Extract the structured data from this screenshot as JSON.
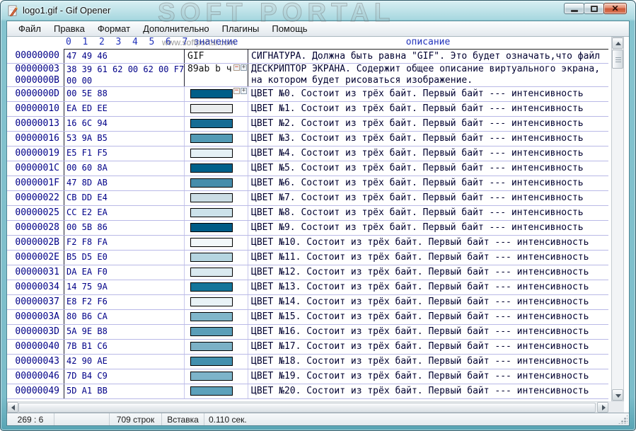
{
  "window": {
    "title": "logo1.gif - Gif Opener"
  },
  "icons": {
    "minimize": "minimize-bar",
    "maximize": "restore-square",
    "close": "✕",
    "collapse": "−",
    "expand": "+"
  },
  "watermark": {
    "line1": "SOFT PORTAL",
    "line2": "www.softportal.com"
  },
  "menu": {
    "items": [
      "Файл",
      "Правка",
      "Формат",
      "Дополнительно",
      "Плагины",
      "Помощь"
    ]
  },
  "table": {
    "byte_headers": [
      "0",
      "1",
      "2",
      "3",
      "4",
      "5",
      "6",
      "7"
    ],
    "value_header": "значение",
    "desc_header": "описание",
    "rows": [
      {
        "type": "boxed",
        "offset": "00000000",
        "hex": "47 49 46",
        "value": "GIF",
        "desc": "СИГНАТУРА. Должна быть равна \"GIF\". Это будет означать,что файл"
      },
      {
        "type": "boxed",
        "offset": "00000003\n0000000B",
        "hex": "38 39 61 62 00 62 00 F7\n00 00",
        "value": "89ab b ч",
        "expander": true,
        "desc": "ДЕСКРИПТОР ЭКРАНА. Содержит общее описание виртуального экрана,\nна котором будет рисоваться изображение."
      },
      {
        "type": "color",
        "offset": "0000000D",
        "hex": "00 5E 88",
        "swatch": "#005E88",
        "expander": true,
        "desc": "ЦВЕТ №0. Состоит из трёх байт. Первый байт --- интенсивность"
      },
      {
        "type": "color",
        "offset": "00000010",
        "hex": "EA ED EE",
        "swatch": "#EAEDEE",
        "desc": "ЦВЕТ №1. Состоит из трёх байт. Первый байт --- интенсивность"
      },
      {
        "type": "color",
        "offset": "00000013",
        "hex": "16 6C 94",
        "swatch": "#166C94",
        "desc": "ЦВЕТ №2. Состоит из трёх байт. Первый байт --- интенсивность"
      },
      {
        "type": "color",
        "offset": "00000016",
        "hex": "53 9A B5",
        "swatch": "#539AB5",
        "desc": "ЦВЕТ №3. Состоит из трёх байт. Первый байт --- интенсивность"
      },
      {
        "type": "color",
        "offset": "00000019",
        "hex": "E5 F1 F5",
        "swatch": "#E5F1F5",
        "desc": "ЦВЕТ №4. Состоит из трёх байт. Первый байт --- интенсивность"
      },
      {
        "type": "color",
        "offset": "0000001C",
        "hex": "00 60 8A",
        "swatch": "#00608A",
        "desc": "ЦВЕТ №5. Состоит из трёх байт. Первый байт --- интенсивность"
      },
      {
        "type": "color",
        "offset": "0000001F",
        "hex": "47 8D AB",
        "swatch": "#478DAB",
        "desc": "ЦВЕТ №6. Состоит из трёх байт. Первый байт --- интенсивность"
      },
      {
        "type": "color",
        "offset": "00000022",
        "hex": "CB DD E4",
        "swatch": "#CBDDE4",
        "desc": "ЦВЕТ №7. Состоит из трёх байт. Первый байт --- интенсивность"
      },
      {
        "type": "color",
        "offset": "00000025",
        "hex": "CC E2 EA",
        "swatch": "#CCE2EA",
        "desc": "ЦВЕТ №8. Состоит из трёх байт. Первый байт --- интенсивность"
      },
      {
        "type": "color",
        "offset": "00000028",
        "hex": "00 5B 86",
        "swatch": "#005B86",
        "desc": "ЦВЕТ №9. Состоит из трёх байт. Первый байт --- интенсивность"
      },
      {
        "type": "color",
        "offset": "0000002B",
        "hex": "F2 F8 FA",
        "swatch": "#F2F8FA",
        "desc": "ЦВЕТ №10. Состоит из трёх байт. Первый байт --- интенсивность"
      },
      {
        "type": "color",
        "offset": "0000002E",
        "hex": "B5 D5 E0",
        "swatch": "#B5D5E0",
        "desc": "ЦВЕТ №11. Состоит из трёх байт. Первый байт --- интенсивность"
      },
      {
        "type": "color",
        "offset": "00000031",
        "hex": "DA EA F0",
        "swatch": "#DAEAF0",
        "desc": "ЦВЕТ №12. Состоит из трёх байт. Первый байт --- интенсивность"
      },
      {
        "type": "color",
        "offset": "00000034",
        "hex": "14 75 9A",
        "swatch": "#14759A",
        "desc": "ЦВЕТ №13. Состоит из трёх байт. Первый байт --- интенсивность"
      },
      {
        "type": "color",
        "offset": "00000037",
        "hex": "E8 F2 F6",
        "swatch": "#E8F2F6",
        "desc": "ЦВЕТ №14. Состоит из трёх байт. Первый байт --- интенсивность"
      },
      {
        "type": "color",
        "offset": "0000003A",
        "hex": "80 B6 CA",
        "swatch": "#80B6CA",
        "desc": "ЦВЕТ №15. Состоит из трёх байт. Первый байт --- интенсивность"
      },
      {
        "type": "color",
        "offset": "0000003D",
        "hex": "5A 9E B8",
        "swatch": "#5A9EB8",
        "desc": "ЦВЕТ №16. Состоит из трёх байт. Первый байт --- интенсивность"
      },
      {
        "type": "color",
        "offset": "00000040",
        "hex": "7B B1 C6",
        "swatch": "#7BB1C6",
        "desc": "ЦВЕТ №17. Состоит из трёх байт. Первый байт --- интенсивность"
      },
      {
        "type": "color",
        "offset": "00000043",
        "hex": "42 90 AE",
        "swatch": "#4290AE",
        "desc": "ЦВЕТ №18. Состоит из трёх байт. Первый байт --- интенсивность"
      },
      {
        "type": "color",
        "offset": "00000046",
        "hex": "7D B4 C9",
        "swatch": "#7DB4C9",
        "desc": "ЦВЕТ №19. Состоит из трёх байт. Первый байт --- интенсивность"
      },
      {
        "type": "color",
        "offset": "00000049",
        "hex": "5D A1 BB",
        "swatch": "#5DA1BB",
        "desc": "ЦВЕТ №20. Состоит из трёх байт. Первый байт --- интенсивность"
      }
    ]
  },
  "statusbar": {
    "position": "269 : 6",
    "rows_count": "709 строк",
    "mode": "Вставка",
    "time": "0.110 сек."
  }
}
